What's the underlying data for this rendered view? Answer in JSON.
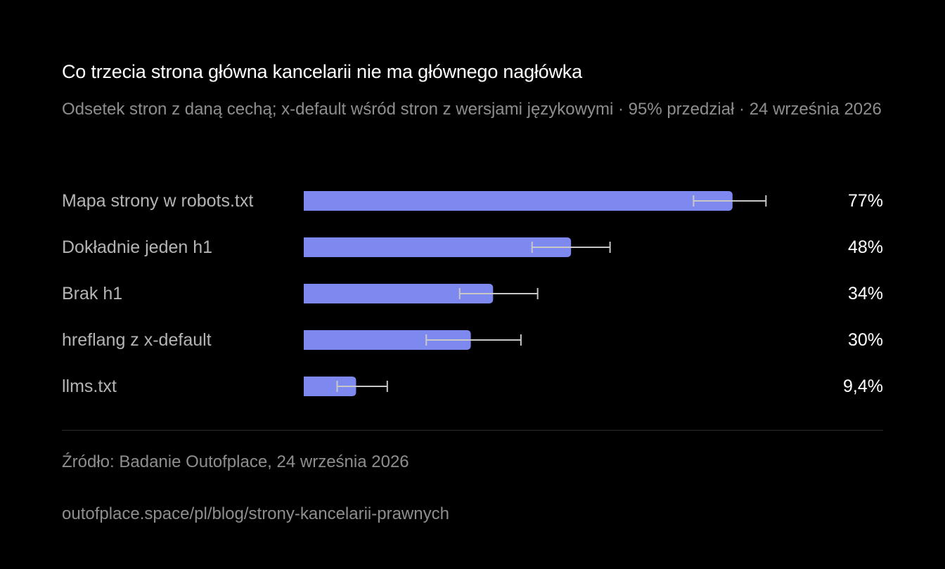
{
  "title": "Co trzecia strona główna kancelarii nie ma głównego nagłówka",
  "subtitle": "Odsetek stron z daną cechą; x-default wśród stron z wersjami językowymi · 95% przedział · 24 września 2026",
  "colors": {
    "background": "#000000",
    "bar": "#7e89f0",
    "error_bar": "#c8c8c8",
    "label": "#b4b4b4",
    "muted": "#8e8e8e"
  },
  "chart_data": {
    "type": "bar",
    "orientation": "horizontal",
    "categories": [
      "Mapa strony w robots.txt",
      "Dokładnie jeden h1",
      "Brak h1",
      "hreflang z x-default",
      "llms.txt"
    ],
    "values": [
      77,
      48,
      34,
      30,
      9.4
    ],
    "value_labels": [
      "77%",
      "48%",
      "34%",
      "30%",
      "9,4%"
    ],
    "ci_low": [
      70,
      41,
      28,
      22,
      6
    ],
    "ci_high": [
      83,
      55,
      42,
      39,
      15
    ],
    "xlim": [
      0,
      100
    ],
    "unit": "%",
    "grid": false,
    "legend": "none"
  },
  "footer": {
    "source": "Źródło: Badanie Outofplace, 24 września 2026",
    "url": "outofplace.space/pl/blog/strony-kancelarii-prawnych"
  }
}
